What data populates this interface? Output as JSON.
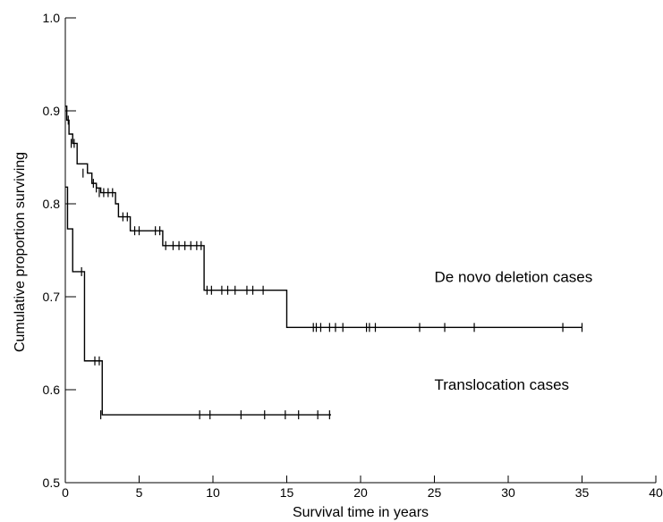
{
  "chart_data": {
    "type": "line",
    "title": "",
    "xlabel": "Survival time in years",
    "ylabel": "Cumulative proportion surviving",
    "xlim": [
      0,
      40
    ],
    "ylim": [
      0.5,
      1.0
    ],
    "xticks": [
      "0",
      "5",
      "10",
      "15",
      "20",
      "25",
      "30",
      "35",
      "40"
    ],
    "yticks": [
      "0.5",
      "0.6",
      "0.7",
      "0.8",
      "0.9",
      "1.0"
    ],
    "grid": false,
    "legend": "none",
    "series": [
      {
        "name": "De novo deletion cases",
        "steps": [
          [
            0,
            0.905
          ],
          [
            0.1,
            0.89
          ],
          [
            0.25,
            0.875
          ],
          [
            0.5,
            0.865
          ],
          [
            0.8,
            0.843
          ],
          [
            1.5,
            0.833
          ],
          [
            1.8,
            0.822
          ],
          [
            2.1,
            0.817
          ],
          [
            2.4,
            0.812
          ],
          [
            3.4,
            0.8
          ],
          [
            3.6,
            0.786
          ],
          [
            4.4,
            0.771
          ],
          [
            6.6,
            0.755
          ],
          [
            9.4,
            0.707
          ],
          [
            15.0,
            0.667
          ],
          [
            35.0,
            0.667
          ]
        ],
        "censored": [
          [
            0.2,
            0.89
          ],
          [
            0.4,
            0.865
          ],
          [
            0.6,
            0.865
          ],
          [
            1.2,
            0.833
          ],
          [
            1.9,
            0.822
          ],
          [
            2.1,
            0.817
          ],
          [
            2.3,
            0.812
          ],
          [
            2.6,
            0.812
          ],
          [
            2.9,
            0.812
          ],
          [
            3.2,
            0.812
          ],
          [
            3.9,
            0.786
          ],
          [
            4.2,
            0.786
          ],
          [
            4.7,
            0.771
          ],
          [
            5.0,
            0.771
          ],
          [
            6.1,
            0.771
          ],
          [
            6.4,
            0.771
          ],
          [
            6.8,
            0.755
          ],
          [
            7.3,
            0.755
          ],
          [
            7.7,
            0.755
          ],
          [
            8.1,
            0.755
          ],
          [
            8.5,
            0.755
          ],
          [
            8.9,
            0.755
          ],
          [
            9.2,
            0.755
          ],
          [
            9.6,
            0.707
          ],
          [
            9.9,
            0.707
          ],
          [
            10.6,
            0.707
          ],
          [
            11.0,
            0.707
          ],
          [
            11.5,
            0.707
          ],
          [
            12.3,
            0.707
          ],
          [
            12.7,
            0.707
          ],
          [
            13.4,
            0.707
          ],
          [
            16.8,
            0.667
          ],
          [
            17.0,
            0.667
          ],
          [
            17.3,
            0.667
          ],
          [
            17.9,
            0.667
          ],
          [
            18.3,
            0.667
          ],
          [
            18.8,
            0.667
          ],
          [
            20.4,
            0.667
          ],
          [
            20.6,
            0.667
          ],
          [
            21.0,
            0.667
          ],
          [
            24.0,
            0.667
          ],
          [
            25.7,
            0.667
          ],
          [
            27.7,
            0.667
          ],
          [
            33.7,
            0.667
          ],
          [
            35.0,
            0.667
          ]
        ]
      },
      {
        "name": "Translocation cases",
        "steps": [
          [
            0,
            0.818
          ],
          [
            0.15,
            0.773
          ],
          [
            0.5,
            0.727
          ],
          [
            1.3,
            0.631
          ],
          [
            2.5,
            0.573
          ],
          [
            18.0,
            0.573
          ]
        ],
        "censored": [
          [
            1.1,
            0.727
          ],
          [
            2.0,
            0.631
          ],
          [
            2.3,
            0.631
          ],
          [
            2.4,
            0.573
          ],
          [
            9.1,
            0.573
          ],
          [
            9.8,
            0.573
          ],
          [
            11.9,
            0.573
          ],
          [
            13.5,
            0.573
          ],
          [
            14.9,
            0.573
          ],
          [
            15.8,
            0.573
          ],
          [
            17.1,
            0.573
          ],
          [
            17.9,
            0.573
          ]
        ]
      }
    ],
    "annotations": [
      {
        "text": "De novo deletion cases",
        "x": 25,
        "y": 0.716
      },
      {
        "text": "Translocation cases",
        "x": 25,
        "y": 0.6
      }
    ]
  }
}
